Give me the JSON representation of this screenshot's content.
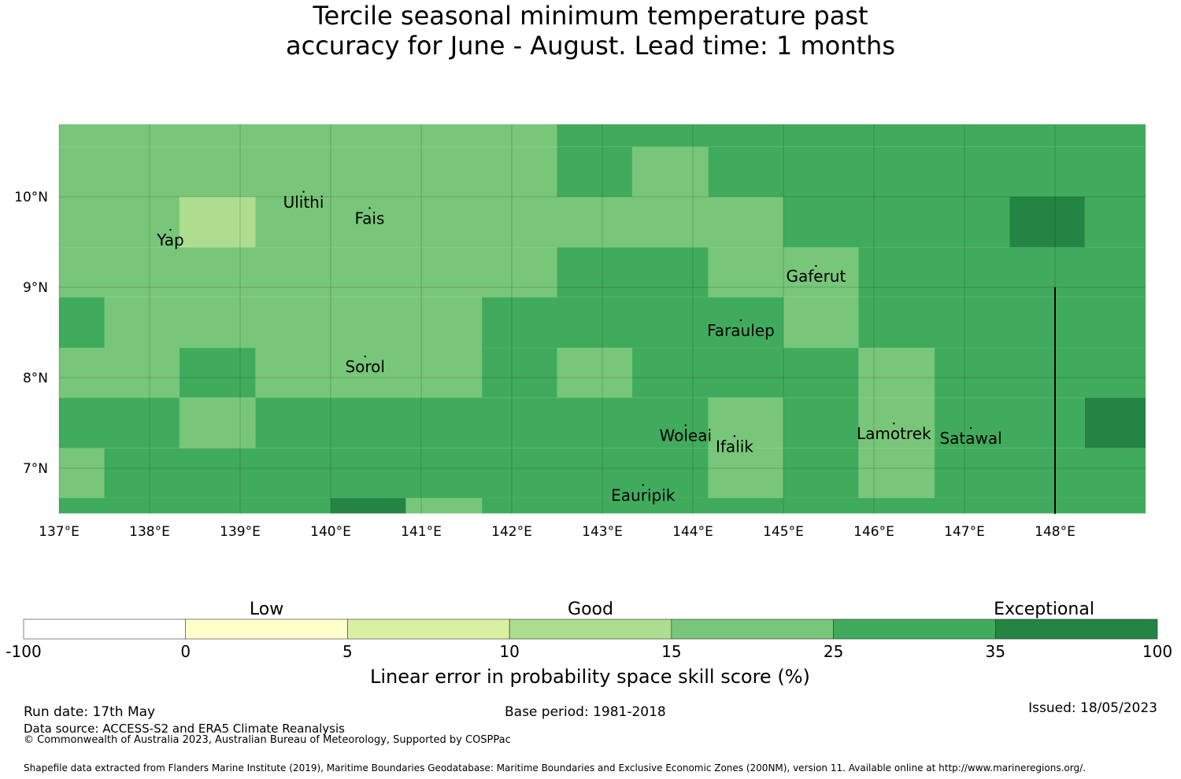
{
  "title": {
    "line1": "Tercile seasonal minimum temperature past",
    "line2": "accuracy for June - August. Lead time: 1 months"
  },
  "map": {
    "x_ticks": [
      "137°E",
      "138°E",
      "139°E",
      "140°E",
      "141°E",
      "142°E",
      "143°E",
      "144°E",
      "145°E",
      "146°E",
      "147°E",
      "148°E"
    ],
    "y_ticks": [
      "10°N",
      "9°N",
      "8°N",
      "7°N"
    ],
    "lon_range": [
      137,
      149
    ],
    "lat_range": [
      6.5,
      10.8
    ],
    "colors": {
      "c15_25": "#78c679",
      "c25_35": "#41ab5d",
      "c35_100": "#238443",
      "c10_15": "#addd8e"
    },
    "cell_rows": [
      {
        "lat": [
          10.55,
          10.8
        ],
        "cells": [
          {
            "lon": [
              137,
              142.5
            ],
            "c": "c15_25"
          },
          {
            "lon": [
              142.5,
              149
            ],
            "c": "c25_35"
          }
        ]
      },
      {
        "lat": [
          10.0,
          10.55
        ],
        "cells": [
          {
            "lon": [
              137,
              142.5
            ],
            "c": "c15_25"
          },
          {
            "lon": [
              142.5,
              143.33
            ],
            "c": "c25_35"
          },
          {
            "lon": [
              143.33,
              144.17
            ],
            "c": "c15_25"
          },
          {
            "lon": [
              144.17,
              149
            ],
            "c": "c25_35"
          }
        ]
      },
      {
        "lat": [
          9.44,
          10.0
        ],
        "cells": [
          {
            "lon": [
              137,
              138.33
            ],
            "c": "c15_25"
          },
          {
            "lon": [
              138.33,
              139.17
            ],
            "c": "c10_15"
          },
          {
            "lon": [
              139.17,
              145.0
            ],
            "c": "c15_25"
          },
          {
            "lon": [
              145.0,
              147.5
            ],
            "c": "c25_35"
          },
          {
            "lon": [
              147.5,
              148.33
            ],
            "c": "c35_100"
          },
          {
            "lon": [
              148.33,
              149
            ],
            "c": "c25_35"
          }
        ]
      },
      {
        "lat": [
          8.89,
          9.44
        ],
        "cells": [
          {
            "lon": [
              137,
              142.5
            ],
            "c": "c15_25"
          },
          {
            "lon": [
              142.5,
              144.17
            ],
            "c": "c25_35"
          },
          {
            "lon": [
              144.17,
              145.83
            ],
            "c": "c15_25"
          },
          {
            "lon": [
              145.83,
              149
            ],
            "c": "c25_35"
          }
        ]
      },
      {
        "lat": [
          8.33,
          8.89
        ],
        "cells": [
          {
            "lon": [
              137,
              137.5
            ],
            "c": "c25_35"
          },
          {
            "lon": [
              137.5,
              141.67
            ],
            "c": "c15_25"
          },
          {
            "lon": [
              141.67,
              145.0
            ],
            "c": "c25_35"
          },
          {
            "lon": [
              145.0,
              145.83
            ],
            "c": "c15_25"
          },
          {
            "lon": [
              145.83,
              149
            ],
            "c": "c25_35"
          }
        ]
      },
      {
        "lat": [
          7.78,
          8.33
        ],
        "cells": [
          {
            "lon": [
              137,
              138.33
            ],
            "c": "c15_25"
          },
          {
            "lon": [
              138.33,
              139.17
            ],
            "c": "c25_35"
          },
          {
            "lon": [
              139.17,
              141.67
            ],
            "c": "c15_25"
          },
          {
            "lon": [
              141.67,
              142.5
            ],
            "c": "c25_35"
          },
          {
            "lon": [
              142.5,
              143.33
            ],
            "c": "c15_25"
          },
          {
            "lon": [
              143.33,
              145.83
            ],
            "c": "c25_35"
          },
          {
            "lon": [
              145.83,
              146.67
            ],
            "c": "c15_25"
          },
          {
            "lon": [
              146.67,
              149
            ],
            "c": "c25_35"
          }
        ]
      },
      {
        "lat": [
          7.22,
          7.78
        ],
        "cells": [
          {
            "lon": [
              137,
              138.33
            ],
            "c": "c25_35"
          },
          {
            "lon": [
              138.33,
              139.17
            ],
            "c": "c15_25"
          },
          {
            "lon": [
              139.17,
              144.17
            ],
            "c": "c25_35"
          },
          {
            "lon": [
              144.17,
              145.0
            ],
            "c": "c15_25"
          },
          {
            "lon": [
              145.0,
              145.83
            ],
            "c": "c25_35"
          },
          {
            "lon": [
              145.83,
              146.67
            ],
            "c": "c15_25"
          },
          {
            "lon": [
              146.67,
              148.33
            ],
            "c": "c25_35"
          },
          {
            "lon": [
              148.33,
              149
            ],
            "c": "c35_100"
          }
        ]
      },
      {
        "lat": [
          6.67,
          7.22
        ],
        "cells": [
          {
            "lon": [
              137,
              137.5
            ],
            "c": "c15_25"
          },
          {
            "lon": [
              137.5,
              144.17
            ],
            "c": "c25_35"
          },
          {
            "lon": [
              144.17,
              145.0
            ],
            "c": "c15_25"
          },
          {
            "lon": [
              145.0,
              145.83
            ],
            "c": "c25_35"
          },
          {
            "lon": [
              145.83,
              146.67
            ],
            "c": "c15_25"
          },
          {
            "lon": [
              146.67,
              149
            ],
            "c": "c25_35"
          }
        ]
      },
      {
        "lat": [
          6.5,
          6.67
        ],
        "cells": [
          {
            "lon": [
              137,
              140.0
            ],
            "c": "c25_35"
          },
          {
            "lon": [
              140.0,
              140.83
            ],
            "c": "c35_100"
          },
          {
            "lon": [
              140.83,
              141.67
            ],
            "c": "c15_25"
          },
          {
            "lon": [
              141.67,
              149
            ],
            "c": "c25_35"
          }
        ]
      }
    ],
    "places": [
      {
        "name": "Ulithi",
        "lon": 139.7,
        "lat": 9.95
      },
      {
        "name": "Fais",
        "lon": 140.43,
        "lat": 9.77
      },
      {
        "name": "Yap",
        "lon": 138.23,
        "lat": 9.53
      },
      {
        "name": "Gaferut",
        "lon": 145.36,
        "lat": 9.13
      },
      {
        "name": "Faraulep",
        "lon": 144.53,
        "lat": 8.53
      },
      {
        "name": "Sorol",
        "lon": 140.38,
        "lat": 8.13
      },
      {
        "name": "Woleai",
        "lon": 143.92,
        "lat": 7.37
      },
      {
        "name": "Ifalik",
        "lon": 144.46,
        "lat": 7.25
      },
      {
        "name": "Lamotrek",
        "lon": 146.22,
        "lat": 7.39
      },
      {
        "name": "Satawal",
        "lon": 147.07,
        "lat": 7.34
      },
      {
        "name": "Eauripik",
        "lon": 143.45,
        "lat": 6.71
      }
    ],
    "boundary_line_lon": 148.0,
    "boundary_line_lat": [
      6.5,
      9.0
    ]
  },
  "legend": {
    "category_labels": [
      "Low",
      "Good",
      "Exceptional"
    ],
    "bins": [
      {
        "from": "-100",
        "to": "0",
        "color": "#ffffff"
      },
      {
        "from": "0",
        "to": "5",
        "color": "#ffffcc"
      },
      {
        "from": "5",
        "to": "10",
        "color": "#d9f0a3"
      },
      {
        "from": "10",
        "to": "15",
        "color": "#addd8e"
      },
      {
        "from": "15",
        "to": "25",
        "color": "#78c679"
      },
      {
        "from": "25",
        "to": "35",
        "color": "#41ab5d"
      },
      {
        "from": "35",
        "to": "100",
        "color": "#238443"
      }
    ],
    "tick_labels": [
      "-100",
      "0",
      "5",
      "10",
      "15",
      "25",
      "35",
      "100"
    ],
    "axis_label": "Linear error in probability space skill score (%)"
  },
  "footer": {
    "run_date": "Run date: 17th May",
    "base_period": "Base period: 1981-2018",
    "issued": "Issued: 18/05/2023",
    "data_source": "Data source: ACCESS-S2 and ERA5 Climate Reanalysis",
    "copyright": "© Commonwealth of Australia 2023, Australian Bureau of Meteorology, Supported by COSPPac",
    "shapefile": "Shapefile data extracted from Flanders Marine Institute (2019), Maritime Boundaries Geodatabase: Maritime Boundaries and Exclusive Economic Zones (200NM), version 11. Available online at http://www.marineregions.org/."
  }
}
